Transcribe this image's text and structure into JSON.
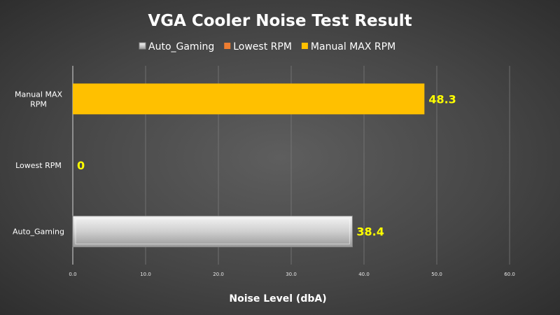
{
  "chart_data": {
    "type": "bar",
    "orientation": "horizontal",
    "title": "VGA Cooler Noise Test Result",
    "xlabel": "Noise Level (dbA)",
    "ylabel": "",
    "xlim": [
      0,
      60
    ],
    "xticks": [
      "0.0",
      "10.0",
      "20.0",
      "30.0",
      "40.0",
      "50.0",
      "60.0"
    ],
    "grid": true,
    "legend_position": "top",
    "categories": [
      "Manual MAX RPM",
      "Lowest RPM",
      "Auto_Gaming"
    ],
    "category_lines": [
      [
        "Manual MAX",
        "RPM"
      ],
      [
        "Lowest RPM"
      ],
      [
        "Auto_Gaming"
      ]
    ],
    "series": [
      {
        "name": "Auto_Gaming",
        "color": "#d0d0d0",
        "values": [
          null,
          null,
          38.4
        ],
        "labels": [
          null,
          null,
          "38.4"
        ]
      },
      {
        "name": "Lowest RPM",
        "color": "#ed7d31",
        "values": [
          null,
          0,
          null
        ],
        "labels": [
          null,
          "0",
          null
        ]
      },
      {
        "name": "Manual MAX RPM",
        "color": "#ffc000",
        "values": [
          48.3,
          null,
          null
        ],
        "labels": [
          "48.3",
          null,
          null
        ]
      }
    ],
    "data_label_color": "#ffff00"
  }
}
